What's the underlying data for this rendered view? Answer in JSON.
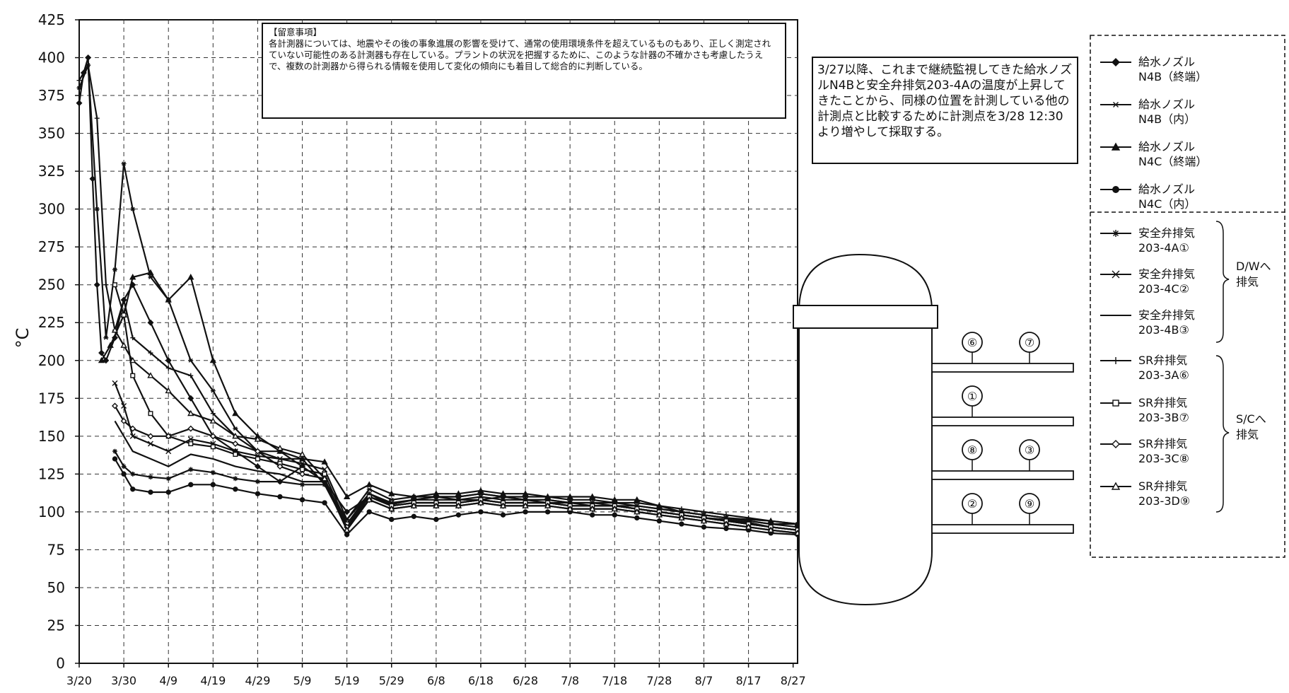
{
  "ylabel": "°C",
  "notes": {
    "caution": "【留意事項】\n各計測器については、地震やその後の事象進展の影響を受けて、通常の使用環境条件を超えているものもあり、正しく測定されていない可能性のある計測器も存在している。プラントの状況を把握するために、このような計器の不確かさも考慮したうえで、複数の計測器から得られる情報を使用して変化の傾向にも着目して総合的に判断している。",
    "measurement": "3/27以降、これまで継続監視してきた給水ノズルN4Bと安全弁排気203-4Aの温度が上昇してきたことから、同様の位置を計測している他の計測点と比較するために計測点を3/28 12:30より増やして採取する。"
  },
  "legend": {
    "group_dw": "D/Wへ\n排気",
    "group_sc": "S/Cへ\n排気",
    "items": [
      {
        "line1": "給水ノズル",
        "line2": "N4B（終端）",
        "marker": "diamond-filled"
      },
      {
        "line1": "給水ノズル",
        "line2": "N4B（内）",
        "marker": "asterisk"
      },
      {
        "line1": "給水ノズル",
        "line2": "N4C（終端）",
        "marker": "triangle-filled"
      },
      {
        "line1": "給水ノズル",
        "line2": "N4C（内）",
        "marker": "circle-filled"
      },
      {
        "line1": "安全弁排気",
        "line2": "203-4A①",
        "marker": "star"
      },
      {
        "line1": "安全弁排気",
        "line2": "203-4C②",
        "marker": "x"
      },
      {
        "line1": "安全弁排気",
        "line2": "203-4B③",
        "marker": "none"
      },
      {
        "line1": "SR弁排気",
        "line2": "203-3A⑥",
        "marker": "plus"
      },
      {
        "line1": "SR弁排気",
        "line2": "203-3B⑦",
        "marker": "square-open"
      },
      {
        "line1": "SR弁排気",
        "line2": "203-3C⑧",
        "marker": "diamond-open"
      },
      {
        "line1": "SR弁排気",
        "line2": "203-3D⑨",
        "marker": "triangle-open"
      }
    ]
  },
  "diagram": {
    "points": [
      "⑥",
      "⑦",
      "①",
      "⑧",
      "③",
      "②",
      "⑨"
    ]
  },
  "chart_data": {
    "type": "line",
    "title": "",
    "xlabel": "",
    "ylabel": "°C",
    "ylim": [
      0,
      425
    ],
    "yticks": [
      0,
      25,
      50,
      75,
      100,
      125,
      150,
      175,
      200,
      225,
      250,
      275,
      300,
      325,
      350,
      375,
      400,
      425
    ],
    "x_tick_labels": [
      "3/20",
      "3/30",
      "4/9",
      "4/19",
      "4/29",
      "5/9",
      "5/19",
      "5/29",
      "6/8",
      "6/18",
      "6/28",
      "7/8",
      "7/18",
      "7/28",
      "8/7",
      "8/17",
      "8/27"
    ],
    "x_unit": "days from 3/20",
    "xlim": [
      0,
      161
    ],
    "grid": true,
    "series": [
      {
        "name": "給水ノズル N4B（終端）",
        "x": [
          0,
          1,
          2,
          3,
          4,
          5,
          6,
          8,
          10,
          12,
          16,
          20,
          25,
          30,
          35,
          40,
          45,
          50,
          55,
          60,
          65,
          70,
          75,
          80,
          85,
          90,
          95,
          100,
          105,
          110,
          115,
          120,
          125,
          130,
          135,
          140,
          145,
          150,
          155,
          161
        ],
        "y": [
          370,
          390,
          400,
          320,
          250,
          205,
          200,
          215,
          240,
          250,
          225,
          200,
          175,
          150,
          140,
          130,
          120,
          130,
          120,
          100,
          110,
          105,
          108,
          110,
          108,
          108,
          110,
          108,
          106,
          106,
          104,
          104,
          102,
          100,
          98,
          96,
          95,
          93,
          90,
          88
        ]
      },
      {
        "name": "給水ノズル N4B（内）",
        "x": [
          0,
          2,
          4,
          6,
          8,
          10,
          12,
          16,
          20,
          25,
          30,
          35,
          40,
          45,
          50,
          55,
          60,
          65,
          70,
          75,
          80,
          85,
          90,
          95,
          100,
          105,
          110,
          115,
          120,
          125,
          130,
          135,
          140,
          145,
          150,
          155,
          161
        ],
        "y": [
          380,
          395,
          300,
          215,
          260,
          330,
          300,
          255,
          240,
          200,
          180,
          155,
          140,
          135,
          135,
          118,
          95,
          115,
          108,
          110,
          110,
          110,
          112,
          110,
          108,
          108,
          106,
          106,
          104,
          104,
          102,
          100,
          98,
          96,
          94,
          92,
          92
        ]
      },
      {
        "name": "給水ノズル N4C（終端）",
        "x": [
          5,
          7,
          10,
          12,
          16,
          20,
          25,
          30,
          35,
          40,
          45,
          50,
          55,
          60,
          65,
          70,
          75,
          80,
          85,
          90,
          95,
          100,
          105,
          110,
          115,
          120,
          125,
          130,
          135,
          140,
          145,
          150,
          155,
          161
        ],
        "y": [
          200,
          210,
          230,
          255,
          258,
          240,
          255,
          200,
          165,
          150,
          140,
          135,
          133,
          110,
          118,
          112,
          110,
          112,
          112,
          114,
          112,
          112,
          110,
          110,
          110,
          108,
          108,
          104,
          100,
          98,
          96,
          95,
          94,
          92
        ]
      },
      {
        "name": "給水ノズル N4C（内）",
        "x": [
          8,
          10,
          12,
          16,
          20,
          25,
          30,
          35,
          40,
          45,
          50,
          55,
          60,
          65,
          70,
          75,
          80,
          85,
          90,
          95,
          100,
          105,
          110,
          115,
          120,
          125,
          130,
          135,
          140,
          145,
          150,
          155,
          161
        ],
        "y": [
          135,
          125,
          115,
          113,
          113,
          118,
          118,
          115,
          112,
          110,
          108,
          106,
          85,
          100,
          95,
          97,
          95,
          98,
          100,
          98,
          100,
          100,
          100,
          98,
          98,
          96,
          94,
          92,
          90,
          89,
          88,
          86,
          85
        ]
      },
      {
        "name": "安全弁排気 203-4A①",
        "x": [
          8,
          10,
          12,
          16,
          20,
          25,
          30,
          35,
          40,
          45,
          50,
          55,
          60,
          65,
          70,
          75,
          80,
          85,
          90,
          95,
          100,
          105,
          110,
          115,
          120,
          125,
          130,
          135,
          140,
          145,
          150,
          155,
          161
        ],
        "y": [
          140,
          130,
          125,
          123,
          122,
          128,
          126,
          122,
          120,
          120,
          118,
          118,
          90,
          110,
          104,
          106,
          106,
          106,
          108,
          106,
          106,
          106,
          104,
          104,
          104,
          102,
          100,
          98,
          96,
          94,
          92,
          90,
          88
        ]
      },
      {
        "name": "安全弁排気 203-4C②",
        "x": [
          8,
          10,
          12,
          16,
          20,
          25,
          30,
          35,
          40,
          45,
          50,
          55,
          60,
          65,
          70,
          75,
          80,
          85,
          90,
          95,
          100,
          105,
          110,
          115,
          120,
          125,
          130,
          135,
          140,
          145,
          150,
          155,
          161
        ],
        "y": [
          185,
          170,
          150,
          145,
          140,
          148,
          145,
          140,
          137,
          135,
          132,
          128,
          95,
          112,
          106,
          108,
          108,
          108,
          110,
          108,
          108,
          108,
          106,
          106,
          106,
          104,
          102,
          100,
          98,
          96,
          94,
          92,
          90
        ]
      },
      {
        "name": "安全弁排気 203-4B③",
        "x": [
          8,
          10,
          12,
          16,
          20,
          25,
          30,
          35,
          40,
          45,
          50,
          55,
          60,
          65,
          70,
          75,
          80,
          85,
          90,
          95,
          100,
          105,
          110,
          115,
          120,
          125,
          130,
          135,
          140,
          145,
          150,
          155,
          161
        ],
        "y": [
          160,
          150,
          140,
          135,
          130,
          138,
          135,
          130,
          127,
          125,
          120,
          120,
          92,
          112,
          104,
          106,
          106,
          106,
          108,
          106,
          106,
          106,
          104,
          104,
          104,
          102,
          100,
          98,
          96,
          94,
          92,
          90,
          88
        ]
      },
      {
        "name": "SR弁排気 203-3A⑥",
        "x": [
          0,
          2,
          4,
          6,
          8,
          10,
          12,
          16,
          20,
          25,
          30,
          35,
          40,
          45,
          50,
          55,
          60,
          65,
          70,
          75,
          80,
          85,
          90,
          95,
          100,
          105,
          110,
          115,
          120,
          125,
          130,
          135,
          140,
          145,
          150,
          155,
          161
        ],
        "y": [
          385,
          395,
          360,
          250,
          220,
          240,
          215,
          205,
          195,
          190,
          165,
          150,
          140,
          140,
          130,
          120,
          88,
          112,
          105,
          108,
          110,
          110,
          112,
          110,
          110,
          110,
          108,
          108,
          106,
          106,
          104,
          102,
          100,
          98,
          96,
          94,
          92
        ]
      },
      {
        "name": "SR弁排気 203-3B⑦",
        "x": [
          8,
          10,
          12,
          16,
          20,
          25,
          30,
          35,
          40,
          45,
          50,
          55,
          60,
          65,
          70,
          75,
          80,
          85,
          90,
          95,
          100,
          105,
          110,
          115,
          120,
          125,
          130,
          135,
          140,
          145,
          150,
          155,
          161
        ],
        "y": [
          250,
          230,
          190,
          165,
          150,
          145,
          143,
          138,
          135,
          132,
          128,
          125,
          92,
          110,
          104,
          106,
          106,
          106,
          108,
          106,
          106,
          106,
          104,
          104,
          104,
          102,
          100,
          98,
          96,
          94,
          92,
          90,
          88
        ]
      },
      {
        "name": "SR弁排気 203-3C⑧",
        "x": [
          8,
          10,
          12,
          16,
          20,
          25,
          30,
          35,
          40,
          45,
          50,
          55,
          60,
          65,
          70,
          75,
          80,
          85,
          90,
          95,
          100,
          105,
          110,
          115,
          120,
          125,
          130,
          135,
          140,
          145,
          150,
          155,
          161
        ],
        "y": [
          170,
          160,
          155,
          150,
          150,
          155,
          150,
          145,
          140,
          130,
          125,
          122,
          90,
          108,
          102,
          104,
          104,
          104,
          106,
          104,
          104,
          104,
          102,
          102,
          102,
          100,
          98,
          96,
          94,
          92,
          90,
          88,
          86
        ]
      },
      {
        "name": "SR弁排気 203-3D⑨",
        "x": [
          8,
          10,
          12,
          16,
          20,
          25,
          30,
          35,
          40,
          45,
          50,
          55,
          60,
          65,
          70,
          75,
          80,
          85,
          90,
          95,
          100,
          105,
          110,
          115,
          120,
          125,
          130,
          135,
          140,
          145,
          150,
          155,
          161
        ],
        "y": [
          220,
          210,
          200,
          190,
          180,
          165,
          160,
          150,
          148,
          142,
          138,
          122,
          88,
          108,
          102,
          104,
          104,
          104,
          106,
          104,
          104,
          104,
          102,
          102,
          102,
          100,
          98,
          96,
          94,
          92,
          90,
          88,
          86
        ]
      }
    ]
  }
}
